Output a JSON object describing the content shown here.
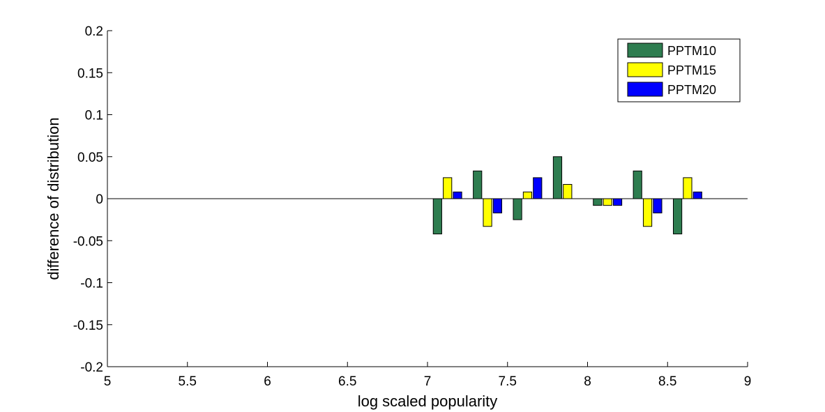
{
  "chart_data": {
    "type": "bar",
    "title": "",
    "xlabel": "log scaled popularity",
    "ylabel": "difference of distribution",
    "xlim": [
      5,
      9
    ],
    "ylim": [
      -0.2,
      0.2
    ],
    "xticks": [
      "5",
      "5.5",
      "6",
      "6.5",
      "7",
      "7.5",
      "8",
      "8.5",
      "9"
    ],
    "xtick_values": [
      5,
      5.5,
      6,
      6.5,
      7,
      7.5,
      8,
      8.5,
      9
    ],
    "yticks": [
      "0.2",
      "0.15",
      "0.1",
      "0.05",
      "0",
      "-0.05",
      "-0.1",
      "-0.15",
      "-0.2"
    ],
    "ytick_values": [
      0.2,
      0.15,
      0.1,
      0.05,
      0,
      -0.05,
      -0.1,
      -0.15,
      -0.2
    ],
    "grid": false,
    "legend_position": "top-right",
    "x": [
      7.125,
      7.375,
      7.625,
      7.875,
      8.125,
      8.375,
      8.625
    ],
    "series": [
      {
        "name": "PPTM10",
        "color": "#2e7d50",
        "values": [
          -0.042,
          0.033,
          -0.025,
          0.05,
          -0.008,
          0.033,
          -0.042
        ]
      },
      {
        "name": "PPTM15",
        "color": "#ffff00",
        "values": [
          0.025,
          -0.033,
          0.008,
          0.017,
          -0.008,
          -0.033,
          0.025
        ]
      },
      {
        "name": "PPTM20",
        "color": "#0000ff",
        "values": [
          0.008,
          -0.017,
          0.025,
          0,
          -0.008,
          -0.017,
          0.008
        ]
      }
    ]
  }
}
